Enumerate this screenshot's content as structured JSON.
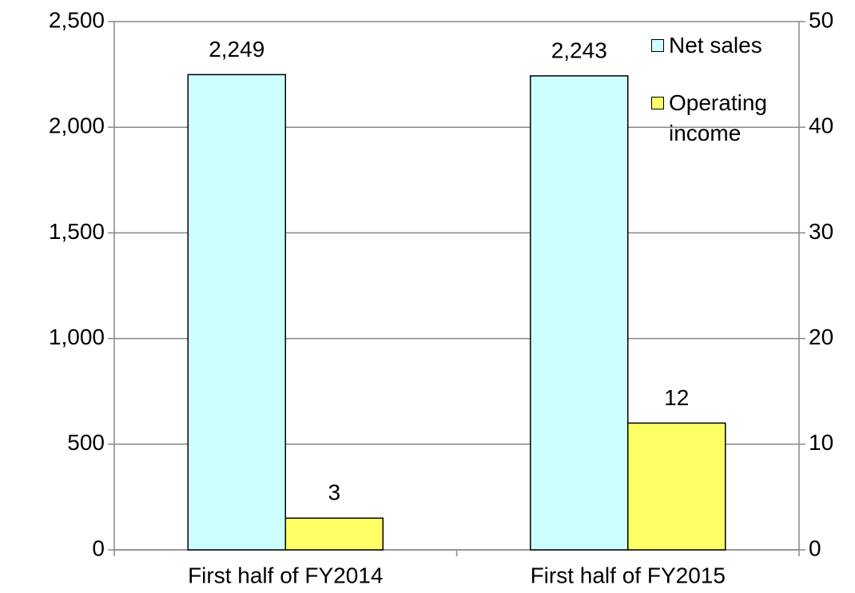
{
  "chart_data": {
    "type": "bar",
    "categories": [
      "First half of FY2014",
      "First half of FY2015"
    ],
    "series": [
      {
        "name": "Net sales",
        "color": "#ccffff",
        "values": [
          2249,
          2243
        ],
        "value_labels": [
          "2,249",
          "2,243"
        ]
      },
      {
        "name": "Operating income",
        "color": "#ffff66",
        "values": [
          3,
          12
        ],
        "axis": "y2"
      }
    ],
    "ylim": [
      0,
      2500
    ],
    "yticks": [
      0,
      500,
      {
        "value": 1000,
        "label": "1,000"
      },
      {
        "value": 1500,
        "label": "1,500"
      },
      {
        "value": 2000,
        "label": "2,000"
      },
      {
        "value": 2500,
        "label": "2,500"
      }
    ],
    "y2lim": [
      0,
      50
    ],
    "y2ticks": [
      0,
      10,
      20,
      30,
      40,
      50
    ],
    "grid": true,
    "legend": "top-right"
  }
}
